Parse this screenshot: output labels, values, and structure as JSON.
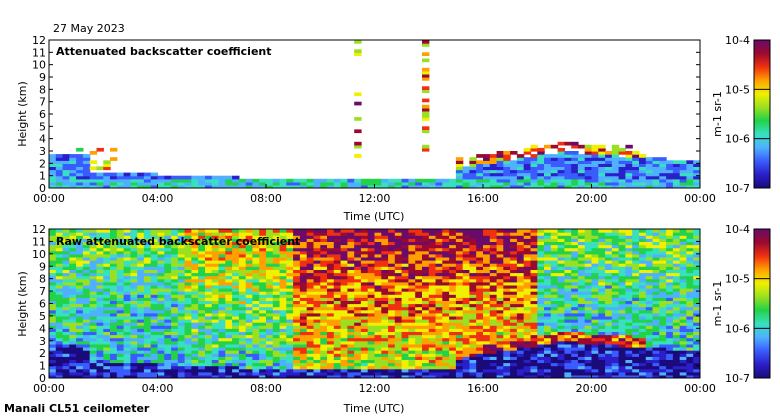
{
  "date_label": "27 May 2023",
  "footer_label": "Manali CL51 ceilometer",
  "colorbar_colors": [
    "#1a0a7a",
    "#2a1fc8",
    "#3a5cff",
    "#4fb0ff",
    "#38e0c0",
    "#22d24a",
    "#9be020",
    "#f0f000",
    "#ffa000",
    "#f03010",
    "#9a0a30",
    "#6a0a6a"
  ],
  "chart_data": [
    {
      "type": "heatmap",
      "id": "attenuated",
      "title": "Attenuated backscatter coefficient",
      "xlabel": "Time (UTC)",
      "ylabel": "Height (km)",
      "x_ticks": [
        "00:00",
        "04:00",
        "08:00",
        "12:00",
        "16:00",
        "20:00",
        "00:00"
      ],
      "y_ticks": [
        "0",
        "1",
        "2",
        "3",
        "4",
        "5",
        "6",
        "7",
        "8",
        "9",
        "10",
        "11",
        "12"
      ],
      "xlim": [
        0,
        24
      ],
      "ylim": [
        0,
        12
      ],
      "colorbar": {
        "label": "m-1 sr-1",
        "ticks": [
          "10-7",
          "10-6",
          "10-5",
          "10-4"
        ],
        "range": [
          -7,
          -4
        ]
      }
    },
    {
      "type": "heatmap",
      "id": "raw",
      "title": "Raw attenuated backscatter coefficient",
      "xlabel": "Time (UTC)",
      "ylabel": "Height (km)",
      "x_ticks": [
        "00:00",
        "04:00",
        "08:00",
        "12:00",
        "16:00",
        "20:00",
        "00:00"
      ],
      "y_ticks": [
        "0",
        "1",
        "2",
        "3",
        "4",
        "5",
        "6",
        "7",
        "8",
        "9",
        "10",
        "11",
        "12"
      ],
      "xlim": [
        0,
        24
      ],
      "ylim": [
        0,
        12
      ],
      "colorbar": {
        "label": "m-1 sr-1",
        "ticks": [
          "10-7",
          "10-6",
          "10-5",
          "10-4"
        ],
        "range": [
          -7,
          -4
        ]
      }
    }
  ]
}
